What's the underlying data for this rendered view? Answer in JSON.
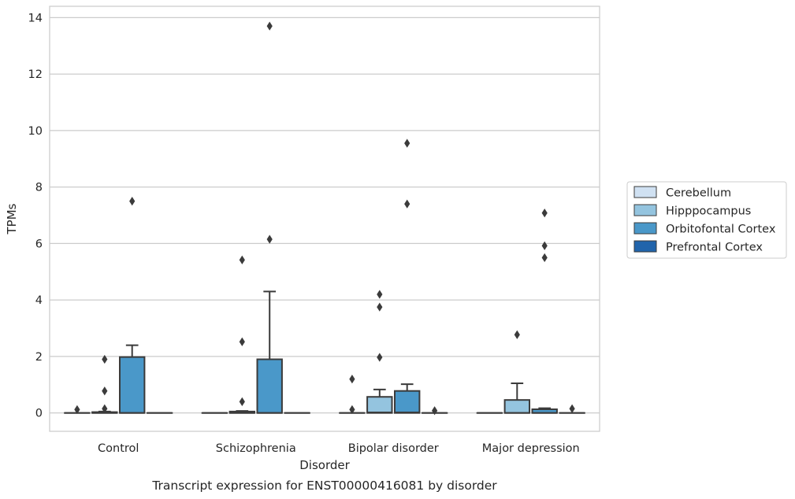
{
  "chart_data": {
    "type": "box",
    "title": "Transcript expression for ENST00000416081 by disorder",
    "xlabel": "Disorder",
    "ylabel": "TPMs",
    "ylim": [
      -0.65,
      14.4
    ],
    "yticks": [
      0,
      2,
      4,
      6,
      8,
      10,
      12,
      14
    ],
    "grid": true,
    "legend_placement": "right",
    "categories": [
      "Control",
      "Schizophrenia",
      "Bipolar disorder",
      "Major depression"
    ],
    "series": [
      {
        "name": "Cerebellum",
        "color": "#d0e1f2",
        "boxes": [
          {
            "q1": 0,
            "median": 0,
            "q3": 0,
            "whisker_low": 0,
            "whisker_high": 0,
            "outliers": [
              0.12
            ]
          },
          {
            "q1": 0,
            "median": 0,
            "q3": 0,
            "whisker_low": 0,
            "whisker_high": 0,
            "outliers": []
          },
          {
            "q1": 0,
            "median": 0,
            "q3": 0,
            "whisker_low": 0,
            "whisker_high": 0,
            "outliers": [
              0.12,
              1.2
            ]
          },
          {
            "q1": 0,
            "median": 0,
            "q3": 0,
            "whisker_low": 0,
            "whisker_high": 0,
            "outliers": []
          }
        ]
      },
      {
        "name": "Hipppocampus",
        "color": "#94c4df",
        "boxes": [
          {
            "q1": 0,
            "median": 0,
            "q3": 0.03,
            "whisker_low": 0,
            "whisker_high": 0.05,
            "outliers": [
              0.15,
              0.78,
              1.9
            ]
          },
          {
            "q1": 0,
            "median": 0,
            "q3": 0.05,
            "whisker_low": 0,
            "whisker_high": 0.07,
            "outliers": [
              0.4,
              2.52,
              5.42
            ]
          },
          {
            "q1": 0,
            "median": 0.02,
            "q3": 0.57,
            "whisker_low": 0,
            "whisker_high": 0.83,
            "outliers": [
              1.97,
              3.75,
              4.2
            ]
          },
          {
            "q1": 0,
            "median": 0,
            "q3": 0.46,
            "whisker_low": 0,
            "whisker_high": 1.05,
            "outliers": [
              2.77
            ]
          }
        ]
      },
      {
        "name": "Orbitofontal Cortex",
        "color": "#4a98c9",
        "boxes": [
          {
            "q1": 0,
            "median": 0,
            "q3": 1.98,
            "whisker_low": 0,
            "whisker_high": 2.4,
            "outliers": [
              7.5
            ]
          },
          {
            "q1": 0,
            "median": 0,
            "q3": 1.9,
            "whisker_low": 0,
            "whisker_high": 4.3,
            "outliers": [
              6.15,
              13.7
            ]
          },
          {
            "q1": 0,
            "median": 0.02,
            "q3": 0.78,
            "whisker_low": 0,
            "whisker_high": 1.02,
            "outliers": [
              7.4,
              9.55
            ]
          },
          {
            "q1": 0,
            "median": 0,
            "q3": 0.13,
            "whisker_low": 0,
            "whisker_high": 0.17,
            "outliers": [
              5.5,
              5.92,
              7.08
            ]
          }
        ]
      },
      {
        "name": "Prefrontal Cortex",
        "color": "#2164ab",
        "boxes": [
          {
            "q1": 0,
            "median": 0,
            "q3": 0,
            "whisker_low": 0,
            "whisker_high": 0,
            "outliers": []
          },
          {
            "q1": 0,
            "median": 0,
            "q3": 0,
            "whisker_low": 0,
            "whisker_high": 0,
            "outliers": []
          },
          {
            "q1": 0,
            "median": 0,
            "q3": 0,
            "whisker_low": 0,
            "whisker_high": 0,
            "outliers": [
              0.08
            ]
          },
          {
            "q1": 0,
            "median": 0,
            "q3": 0,
            "whisker_low": 0,
            "whisker_high": 0,
            "outliers": [
              0.15
            ]
          }
        ]
      }
    ]
  }
}
